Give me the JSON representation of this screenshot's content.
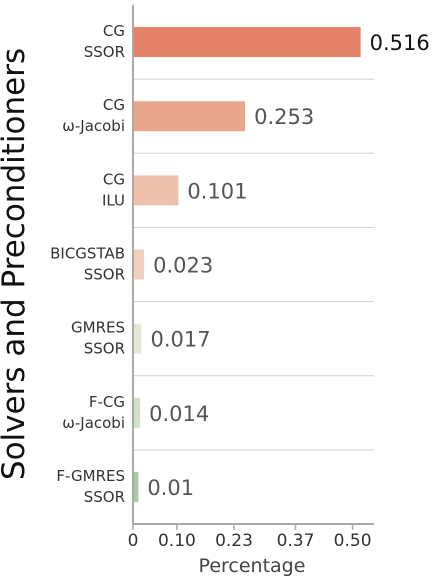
{
  "chart_data": {
    "type": "bar",
    "orientation": "horizontal",
    "categories": [
      [
        "CG",
        "SSOR"
      ],
      [
        "CG",
        "ω-Jacobi"
      ],
      [
        "CG",
        "ILU"
      ],
      [
        "BICGSTAB",
        "SSOR"
      ],
      [
        "GMRES",
        "SSOR"
      ],
      [
        "F-CG",
        "ω-Jacobi"
      ],
      [
        "F-GMRES",
        "SSOR"
      ]
    ],
    "values": [
      0.516,
      0.253,
      0.101,
      0.023,
      0.017,
      0.014,
      0.01
    ],
    "value_labels": [
      "0.516",
      "0.253",
      "0.101",
      "0.023",
      "0.017",
      "0.014",
      "0.01"
    ],
    "colors": [
      "#e5826a",
      "#e9a68c",
      "#edc0ac",
      "#f1d0c0",
      "#e6e8d6",
      "#cfe2c8",
      "#a8cba0"
    ],
    "xticks": [
      "0",
      "0.10",
      "0.23",
      "0.37",
      "0.50"
    ],
    "xtick_values": [
      0,
      0.1,
      0.23,
      0.37,
      0.5
    ],
    "xlim": [
      0,
      0.51
    ],
    "xlabel": "Percentage",
    "ylabel": "Solvers and Preconditioners",
    "title": "",
    "grid": "horizontal separators"
  }
}
